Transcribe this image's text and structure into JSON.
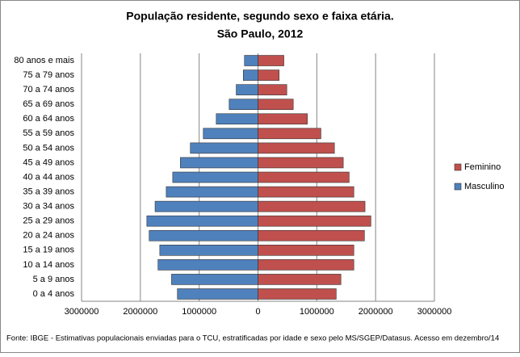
{
  "chart_data": {
    "type": "pyramid",
    "title": "População residente, segundo sexo e faixa etária.",
    "subtitle": "São Paulo, 2012",
    "categories": [
      "0 a 4 anos",
      "5 a 9 anos",
      "10 a 14 anos",
      "15 a 19 anos",
      "20 a 24 anos",
      "25 a 29 anos",
      "30 a 34 anos",
      "35 a 39 anos",
      "40 a 44 anos",
      "45 a 49 anos",
      "50 a 54 anos",
      "55 a 59 anos",
      "60 a 64 anos",
      "65 a 69 anos",
      "70 a 74 anos",
      "75 a 79 anos",
      "80 anos e mais"
    ],
    "series": [
      {
        "name": "Feminino",
        "color": "#c0504d",
        "values": [
          1330000,
          1410000,
          1630000,
          1630000,
          1810000,
          1920000,
          1820000,
          1630000,
          1550000,
          1450000,
          1300000,
          1070000,
          840000,
          600000,
          490000,
          360000,
          440000
        ]
      },
      {
        "name": "Masculino",
        "color": "#4f81bd",
        "values": [
          -1370000,
          -1470000,
          -1700000,
          -1670000,
          -1850000,
          -1890000,
          -1750000,
          -1560000,
          -1450000,
          -1320000,
          -1150000,
          -930000,
          -710000,
          -490000,
          -370000,
          -250000,
          -230000
        ]
      }
    ],
    "xlim": [
      -3000000,
      3000000
    ],
    "xticks": [
      {
        "value": -3000000,
        "label": "3000000"
      },
      {
        "value": -2000000,
        "label": "2000000"
      },
      {
        "value": -1000000,
        "label": "1000000"
      },
      0,
      1000000,
      2000000,
      3000000
    ],
    "grid": true,
    "legend": "right",
    "source": "Fonte:  IBGE - Estimativas populacionais enviadas para o TCU, estratificadas por idade e sexo pelo MS/SGEP/Datasus. Acesso em dezembro/14"
  }
}
